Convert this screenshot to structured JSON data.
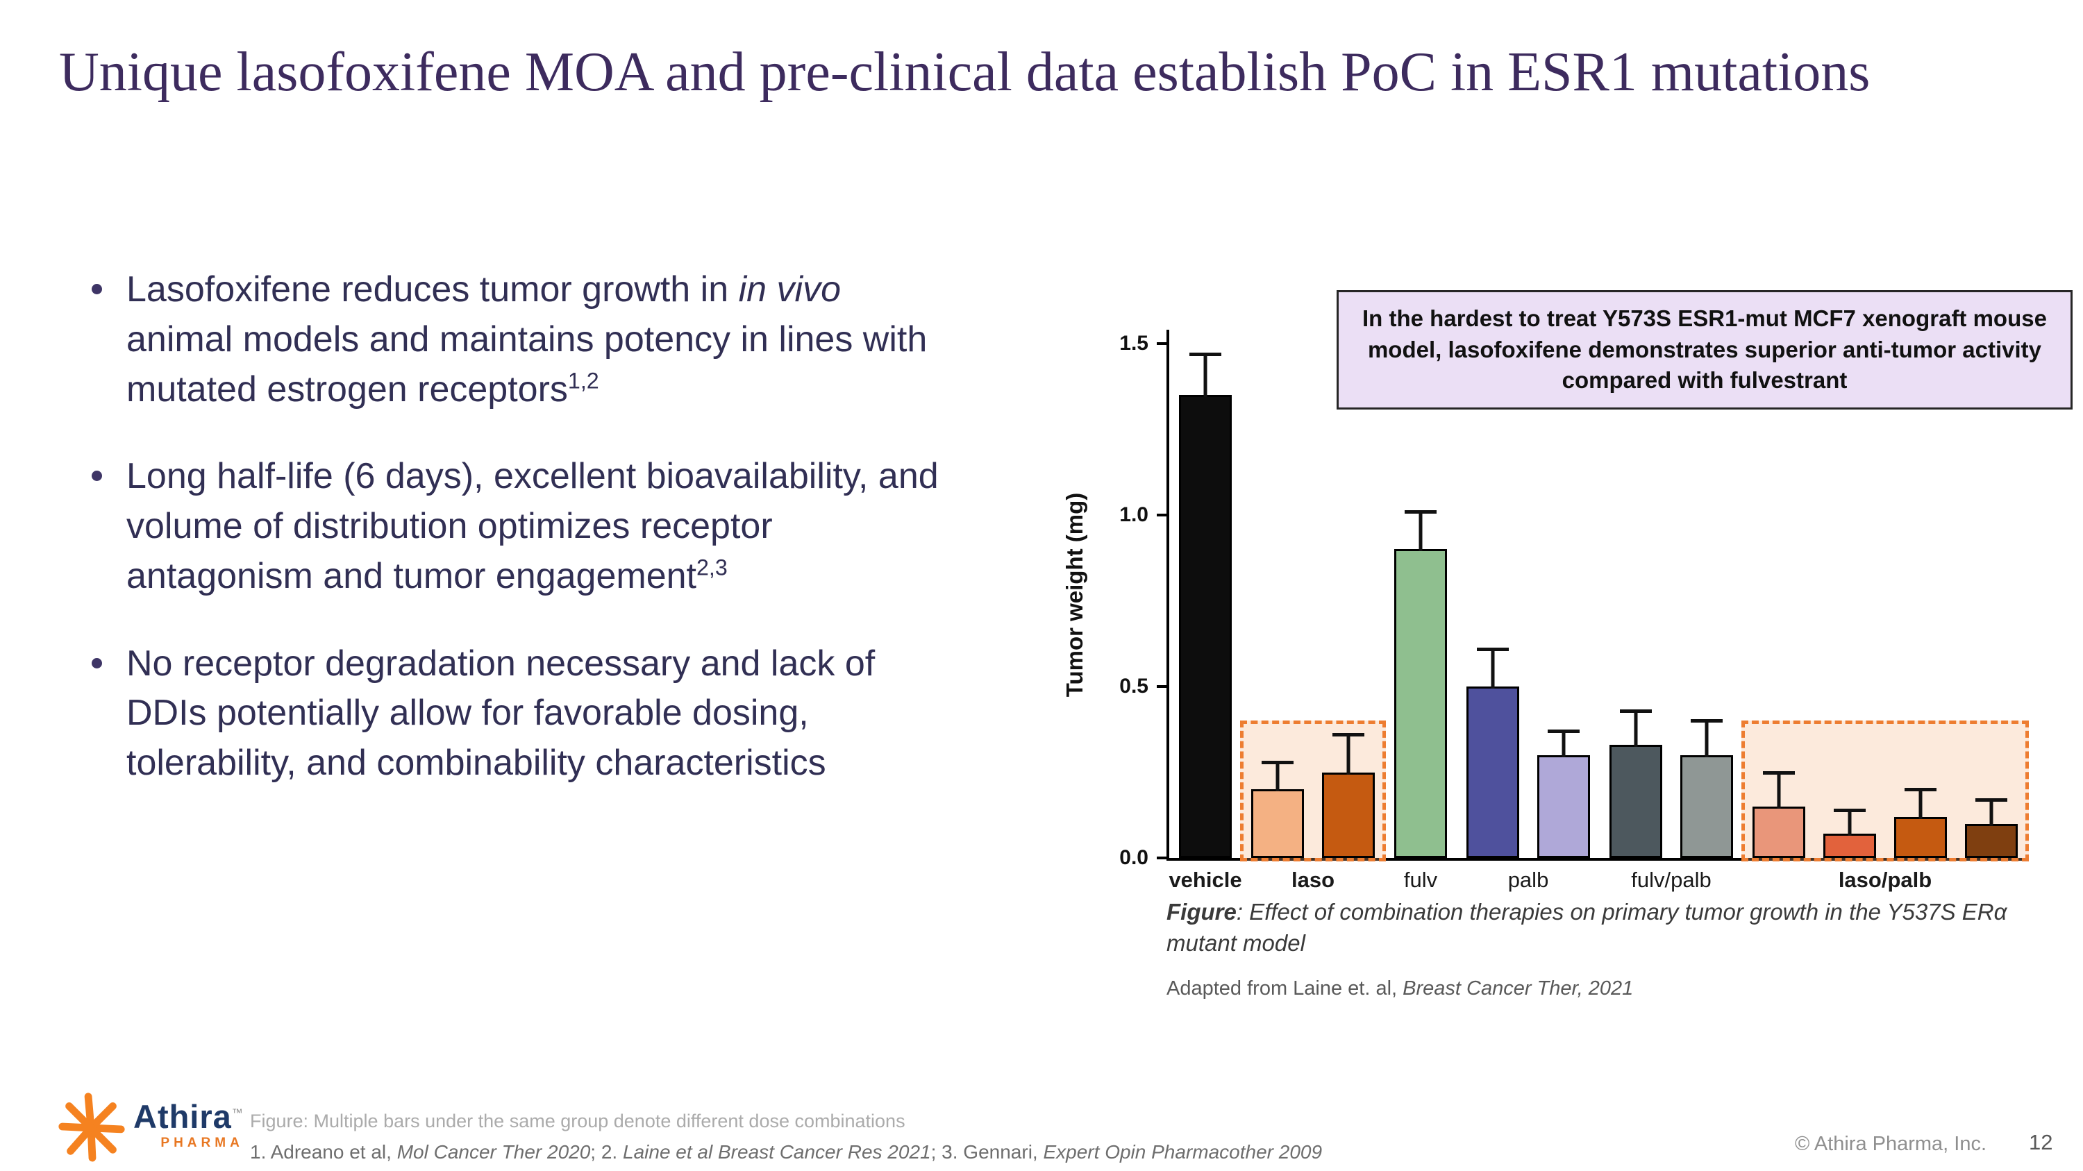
{
  "slide": {
    "title": "Unique lasofoxifene MOA and pre-clinical data establish PoC in ESR1 mutations",
    "page_number": "12",
    "copyright": "© Athira Pharma, Inc."
  },
  "logo": {
    "name": "Athira",
    "tm": "™",
    "sub": "PHARMA",
    "star_color": "#F58220",
    "name_color": "#1F3A68"
  },
  "bullets": [
    {
      "segments": [
        {
          "t": "Lasofoxifene reduces tumor growth in "
        },
        {
          "t": "in vivo",
          "style": "i"
        },
        {
          "t": " animal models and maintains potency in lines with mutated estrogen receptors"
        },
        {
          "t": "1,2",
          "style": "sup"
        }
      ]
    },
    {
      "segments": [
        {
          "t": "Long half-life (6 days), excellent bioavailability, and volume of distribution optimizes receptor antagonism and tumor engagement"
        },
        {
          "t": "2,3",
          "style": "sup"
        }
      ]
    },
    {
      "segments": [
        {
          "t": "No receptor degradation necessary and lack of DDIs potentially allow for favorable dosing, tolerability, and combinability characteristics"
        }
      ]
    }
  ],
  "callout": {
    "text": "In the hardest to treat Y573S ESR1-mut MCF7 xenograft mouse model, lasofoxifene demonstrates superior anti-tumor activity compared with fulvestrant",
    "bg": "#EBDFF5",
    "border": "#262626"
  },
  "chart_data": {
    "type": "bar",
    "title": "",
    "xlabel": "",
    "ylabel": "Tumor weight (mg)",
    "ylim": [
      0,
      1.5
    ],
    "yticks": [
      0,
      0.5,
      1,
      1.5
    ],
    "grid": false,
    "legend": "none",
    "highlight_box": {
      "border": "#ED7D31",
      "fill": "rgba(246,178,130,0.28)",
      "top_value": 0.41,
      "meaning": "lasofoxifene-containing arms"
    },
    "groups": [
      {
        "label": "vehicle",
        "bold": true,
        "highlight": false,
        "bars": [
          {
            "value": 1.35,
            "error": 0.13,
            "color": "#0d0d0d"
          }
        ]
      },
      {
        "label": "laso",
        "bold": true,
        "highlight": true,
        "bars": [
          {
            "value": 0.2,
            "error": 0.09,
            "color": "#F4B183"
          },
          {
            "value": 0.25,
            "error": 0.12,
            "color": "#C55A11"
          }
        ]
      },
      {
        "label": "fulv",
        "bold": false,
        "highlight": false,
        "bars": [
          {
            "value": 0.9,
            "error": 0.12,
            "color": "#8FBF8F"
          }
        ]
      },
      {
        "label": "palb",
        "bold": false,
        "highlight": false,
        "bars": [
          {
            "value": 0.5,
            "error": 0.12,
            "color": "#4F519D"
          },
          {
            "value": 0.3,
            "error": 0.08,
            "color": "#AFA8D8"
          }
        ]
      },
      {
        "label": "fulv/palb",
        "bold": false,
        "highlight": false,
        "bars": [
          {
            "value": 0.33,
            "error": 0.11,
            "color": "#4D585E"
          },
          {
            "value": 0.3,
            "error": 0.11,
            "color": "#8F9795"
          }
        ]
      },
      {
        "label": "laso/palb",
        "bold": true,
        "highlight": true,
        "bars": [
          {
            "value": 0.15,
            "error": 0.11,
            "color": "#E9967A"
          },
          {
            "value": 0.07,
            "error": 0.08,
            "color": "#E2623C"
          },
          {
            "value": 0.12,
            "error": 0.09,
            "color": "#C55A11"
          },
          {
            "value": 0.1,
            "error": 0.08,
            "color": "#7F3F10"
          }
        ]
      }
    ]
  },
  "figure_caption": {
    "segments": [
      {
        "t": "Figure",
        "style": "b"
      },
      {
        "t": ": Effect of combination therapies on primary tumor growth in the Y537S ERα mutant model"
      }
    ]
  },
  "source_line": {
    "segments": [
      {
        "t": "Adapted from Laine et. al, "
      },
      {
        "t": "Breast Cancer Ther, 2021",
        "style": "i"
      }
    ]
  },
  "footnotes": {
    "line1": "Figure: Multiple bars under the same group denote different dose combinations",
    "line2_segments": [
      {
        "t": "1. Adreano et al, "
      },
      {
        "t": "Mol Cancer Ther 2020",
        "style": "i"
      },
      {
        "t": "; 2. "
      },
      {
        "t": "Laine et al Breast Cancer Res 2021",
        "style": "i"
      },
      {
        "t": "; 3. Gennari, "
      },
      {
        "t": "Expert Opin Pharmacother 2009",
        "style": "i"
      }
    ],
    "line3": "."
  }
}
